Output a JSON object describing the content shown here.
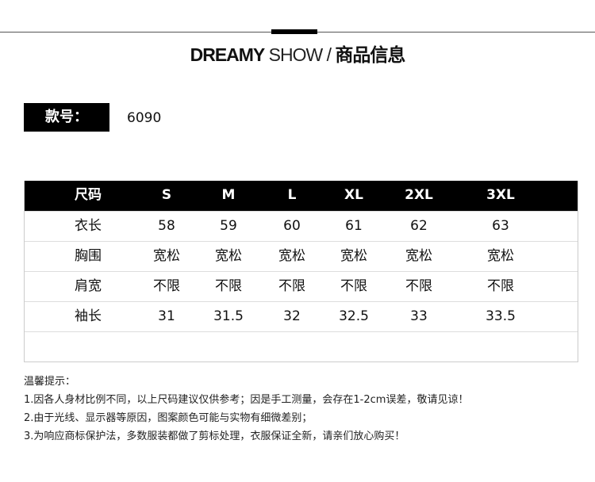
{
  "header": {
    "brand_bold": "DREAMY",
    "brand_light": "SHOW /",
    "title_cn": "商品信息"
  },
  "sku": {
    "label": "款号：",
    "value": "6090"
  },
  "size_table": {
    "headers": [
      "尺码",
      "S",
      "M",
      "L",
      "XL",
      "2XL",
      "3XL"
    ],
    "rows": [
      [
        "衣长",
        "58",
        "59",
        "60",
        "61",
        "62",
        "63"
      ],
      [
        "胸围",
        "宽松",
        "宽松",
        "宽松",
        "宽松",
        "宽松",
        "宽松"
      ],
      [
        "肩宽",
        "不限",
        "不限",
        "不限",
        "不限",
        "不限",
        "不限"
      ],
      [
        "袖长",
        "31",
        "31.5",
        "32",
        "32.5",
        "33",
        "33.5"
      ]
    ]
  },
  "notes": {
    "title": "温馨提示：",
    "items": [
      "1.因各人身材比例不同，以上尺码建议仅供参考；因是手工测量，会存在1-2cm误差，敬请见谅！",
      "2.由于光线、显示器等原因，图案颜色可能与实物有细微差别；",
      "3.为响应商标保护法，多数服装都做了剪标处理，衣服保证全新，请亲们放心购买！"
    ]
  }
}
